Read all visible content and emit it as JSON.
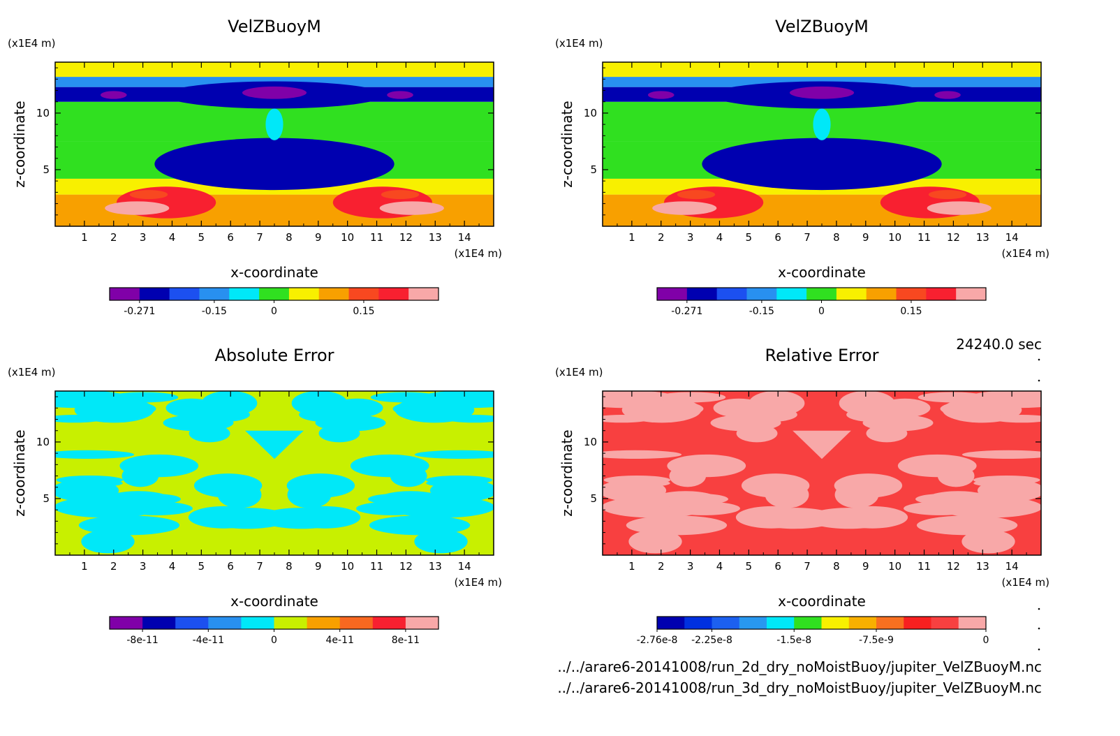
{
  "chart_data": [
    {
      "type": "heatmap",
      "title": "VelZBuoyM",
      "xlabel": "x-coordinate",
      "ylabel": "z-coordinate",
      "x_unit": "(x1E4 m)",
      "y_unit": "(x1E4 m)",
      "xlim": [
        0,
        15
      ],
      "ylim": [
        0,
        14.5
      ],
      "xticks": [
        "1",
        "2",
        "3",
        "4",
        "5",
        "6",
        "7",
        "8",
        "9",
        "10",
        "11",
        "12",
        "13",
        "14"
      ],
      "yticks": [
        "5",
        "10"
      ],
      "colorbar": {
        "colors": [
          "#8000a8",
          "#0000b0",
          "#1c50f0",
          "#2890f0",
          "#00e8f8",
          "#30e020",
          "#f8f000",
          "#f8a000",
          "#f84820",
          "#f82030",
          "#f8a8a8"
        ],
        "labels": [
          "-0.271",
          "-0.15",
          "0",
          "0.15"
        ],
        "label_positions": [
          1,
          3.5,
          5.5,
          8.5
        ]
      },
      "field": {
        "kind": "velocity",
        "bands": [
          {
            "zmin": 0,
            "zmax": 2.8,
            "level": 7
          },
          {
            "zmin": 2.8,
            "zmax": 4.2,
            "level": 6
          },
          {
            "zmin": 4.2,
            "zmax": 7.5,
            "level": 5
          },
          {
            "zmin": 7.5,
            "zmax": 11.0,
            "level": 5
          },
          {
            "zmin": 11.0,
            "zmax": 12.3,
            "level": 1
          },
          {
            "zmin": 12.3,
            "zmax": 13.2,
            "level": 3
          },
          {
            "zmin": 13.2,
            "zmax": 14.5,
            "level": 6
          }
        ],
        "blobs": [
          {
            "x": 7.5,
            "z": 5.5,
            "rx": 8.2,
            "rz": 2.3,
            "level": 1
          },
          {
            "x": 7.5,
            "z": 5.3,
            "rx": 6.5,
            "rz": 1.2,
            "level": 1
          },
          {
            "x": 7.5,
            "z": 11.6,
            "rx": 7.5,
            "rz": 1.2,
            "level": 1
          },
          {
            "x": 7.5,
            "z": 11.8,
            "rx": 2.2,
            "rz": 0.55,
            "level": 0
          },
          {
            "x": 2.0,
            "z": 11.6,
            "rx": 0.9,
            "rz": 0.35,
            "level": 0
          },
          {
            "x": 11.8,
            "z": 11.6,
            "rx": 0.9,
            "rz": 0.35,
            "level": 0
          },
          {
            "x": 3.8,
            "z": 2.1,
            "rx": 3.4,
            "rz": 1.4,
            "level": 9
          },
          {
            "x": 11.2,
            "z": 2.1,
            "rx": 3.4,
            "rz": 1.4,
            "level": 9
          },
          {
            "x": 2.8,
            "z": 1.6,
            "rx": 2.2,
            "rz": 0.6,
            "level": 10
          },
          {
            "x": 12.2,
            "z": 1.6,
            "rx": 2.2,
            "rz": 0.6,
            "level": 10
          },
          {
            "x": 3.2,
            "z": 2.8,
            "rx": 1.3,
            "rz": 0.4,
            "level": 8
          },
          {
            "x": 11.8,
            "z": 2.8,
            "rx": 1.3,
            "rz": 0.4,
            "level": 8
          },
          {
            "x": 7.5,
            "z": 9.0,
            "rx": 0.6,
            "rz": 1.4,
            "level": 4
          }
        ]
      }
    },
    {
      "type": "heatmap",
      "title": "VelZBuoyM",
      "xlabel": "x-coordinate",
      "ylabel": "z-coordinate",
      "x_unit": "(x1E4 m)",
      "y_unit": "(x1E4 m)",
      "xlim": [
        0,
        15
      ],
      "ylim": [
        0,
        14.5
      ],
      "xticks": [
        "1",
        "2",
        "3",
        "4",
        "5",
        "6",
        "7",
        "8",
        "9",
        "10",
        "11",
        "12",
        "13",
        "14"
      ],
      "yticks": [
        "5",
        "10"
      ],
      "colorbar": {
        "colors": [
          "#8000a8",
          "#0000b0",
          "#1c50f0",
          "#2890f0",
          "#00e8f8",
          "#30e020",
          "#f8f000",
          "#f8a000",
          "#f84820",
          "#f82030",
          "#f8a8a8"
        ],
        "labels": [
          "-0.271",
          "-0.15",
          "0",
          "0.15"
        ],
        "label_positions": [
          1,
          3.5,
          5.5,
          8.5
        ]
      },
      "field": {
        "kind": "velocity",
        "bands": [
          {
            "zmin": 0,
            "zmax": 2.8,
            "level": 7
          },
          {
            "zmin": 2.8,
            "zmax": 4.2,
            "level": 6
          },
          {
            "zmin": 4.2,
            "zmax": 7.5,
            "level": 5
          },
          {
            "zmin": 7.5,
            "zmax": 11.0,
            "level": 5
          },
          {
            "zmin": 11.0,
            "zmax": 12.3,
            "level": 1
          },
          {
            "zmin": 12.3,
            "zmax": 13.2,
            "level": 3
          },
          {
            "zmin": 13.2,
            "zmax": 14.5,
            "level": 6
          }
        ],
        "blobs": [
          {
            "x": 7.5,
            "z": 5.5,
            "rx": 8.2,
            "rz": 2.3,
            "level": 1
          },
          {
            "x": 7.5,
            "z": 5.3,
            "rx": 6.5,
            "rz": 1.2,
            "level": 1
          },
          {
            "x": 7.5,
            "z": 11.6,
            "rx": 7.5,
            "rz": 1.2,
            "level": 1
          },
          {
            "x": 7.5,
            "z": 11.8,
            "rx": 2.2,
            "rz": 0.55,
            "level": 0
          },
          {
            "x": 2.0,
            "z": 11.6,
            "rx": 0.9,
            "rz": 0.35,
            "level": 0
          },
          {
            "x": 11.8,
            "z": 11.6,
            "rx": 0.9,
            "rz": 0.35,
            "level": 0
          },
          {
            "x": 3.8,
            "z": 2.1,
            "rx": 3.4,
            "rz": 1.4,
            "level": 9
          },
          {
            "x": 11.2,
            "z": 2.1,
            "rx": 3.4,
            "rz": 1.4,
            "level": 9
          },
          {
            "x": 2.8,
            "z": 1.6,
            "rx": 2.2,
            "rz": 0.6,
            "level": 10
          },
          {
            "x": 12.2,
            "z": 1.6,
            "rx": 2.2,
            "rz": 0.6,
            "level": 10
          },
          {
            "x": 3.2,
            "z": 2.8,
            "rx": 1.3,
            "rz": 0.4,
            "level": 8
          },
          {
            "x": 11.8,
            "z": 2.8,
            "rx": 1.3,
            "rz": 0.4,
            "level": 8
          },
          {
            "x": 7.5,
            "z": 9.0,
            "rx": 0.6,
            "rz": 1.4,
            "level": 4
          }
        ]
      }
    },
    {
      "type": "heatmap",
      "title": "Absolute Error",
      "xlabel": "x-coordinate",
      "ylabel": "z-coordinate",
      "x_unit": "(x1E4 m)",
      "y_unit": "(x1E4 m)",
      "xlim": [
        0,
        15
      ],
      "ylim": [
        0,
        14.5
      ],
      "xticks": [
        "1",
        "2",
        "3",
        "4",
        "5",
        "6",
        "7",
        "8",
        "9",
        "10",
        "11",
        "12",
        "13",
        "14"
      ],
      "yticks": [
        "5",
        "10"
      ],
      "colorbar": {
        "colors": [
          "#8000a8",
          "#0000b0",
          "#1c50f0",
          "#2890f0",
          "#00e8f8",
          "#c8f000",
          "#f8a000",
          "#f86820",
          "#f82030",
          "#f8a8a8"
        ],
        "labels": [
          "-8e-11",
          "-4e-11",
          "0",
          "4e-11",
          "8e-11"
        ],
        "label_positions": [
          1,
          3,
          5,
          7,
          9
        ]
      },
      "field": {
        "kind": "two-tone",
        "base_level": 5,
        "patch_level": 4,
        "seed": 7
      }
    },
    {
      "type": "heatmap",
      "title": "Relative Error",
      "xlabel": "x-coordinate",
      "ylabel": "z-coordinate",
      "x_unit": "(x1E4 m)",
      "y_unit": "(x1E4 m)",
      "xlim": [
        0,
        15
      ],
      "ylim": [
        0,
        14.5
      ],
      "xticks": [
        "1",
        "2",
        "3",
        "4",
        "5",
        "6",
        "7",
        "8",
        "9",
        "10",
        "11",
        "12",
        "13",
        "14"
      ],
      "yticks": [
        "5",
        "10"
      ],
      "colorbar": {
        "colors": [
          "#0000b0",
          "#0030e0",
          "#1c60f0",
          "#2898f0",
          "#00e8f8",
          "#30e020",
          "#f8f000",
          "#f8b000",
          "#f87020",
          "#f82020",
          "#f84040",
          "#f8a8a8"
        ],
        "labels": [
          "-2.76e-8",
          "-2.25e-8",
          "-1.5e-8",
          "-7.5e-9",
          "0"
        ],
        "label_positions": [
          0,
          2,
          5,
          8,
          12
        ]
      },
      "field": {
        "kind": "two-tone",
        "base_level": 10,
        "patch_level": 11,
        "seed": 7
      }
    }
  ],
  "time_label": "24240.0 sec",
  "file_paths": [
    "../../arare6-20141008/run_2d_dry_noMoistBuoy/jupiter_VelZBuoyM.nc",
    "../../arare6-20141008/run_3d_dry_noMoistBuoy/jupiter_VelZBuoyM.nc"
  ]
}
